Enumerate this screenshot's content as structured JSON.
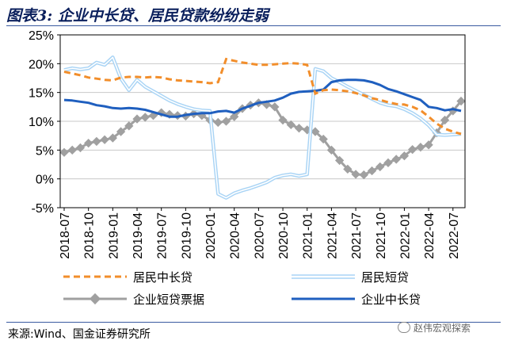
{
  "header": {
    "title": "图表3:  企业中长贷、居民贷款纷纷走弱"
  },
  "footer": {
    "source": "来源:Wind、国金证券研究所",
    "watermark": "赵伟宏观探索"
  },
  "colors": {
    "series1": "#f28e2b",
    "series2": "#a9d4f5",
    "series3": "#a0a0a0",
    "series4": "#1f5fbf"
  },
  "chart_data": {
    "type": "line",
    "x": [
      "2018-07",
      "2018-08",
      "2018-09",
      "2018-10",
      "2018-11",
      "2018-12",
      "2019-01",
      "2019-02",
      "2019-03",
      "2019-04",
      "2019-05",
      "2019-06",
      "2019-07",
      "2019-08",
      "2019-09",
      "2019-10",
      "2019-11",
      "2019-12",
      "2020-01",
      "2020-02",
      "2020-03",
      "2020-04",
      "2020-05",
      "2020-06",
      "2020-07",
      "2020-08",
      "2020-09",
      "2020-10",
      "2020-11",
      "2020-12",
      "2021-01",
      "2021-02",
      "2021-03",
      "2021-04",
      "2021-05",
      "2021-06",
      "2021-07",
      "2021-08",
      "2021-09",
      "2021-10",
      "2021-11",
      "2021-12",
      "2022-01",
      "2022-02",
      "2022-03",
      "2022-04",
      "2022-05",
      "2022-06",
      "2022-07",
      "2022-08"
    ],
    "xticks": [
      "2018-07",
      "2018-10",
      "2019-01",
      "2019-04",
      "2019-07",
      "2019-10",
      "2020-01",
      "2020-04",
      "2020-07",
      "2020-10",
      "2021-01",
      "2021-04",
      "2021-07",
      "2021-10",
      "2022-01",
      "2022-04",
      "2022-07"
    ],
    "yticks": [
      "25%",
      "20%",
      "15%",
      "10%",
      "5%",
      "0%",
      "-5%"
    ],
    "ylim": [
      -5,
      25
    ],
    "y_unit": "%",
    "series": [
      {
        "name": "居民中长贷",
        "style": "dashed",
        "values": [
          18.6,
          18.3,
          18.0,
          17.6,
          17.4,
          17.2,
          17.1,
          17.6,
          17.7,
          17.7,
          17.6,
          17.7,
          17.6,
          17.3,
          17.1,
          17.0,
          16.9,
          16.8,
          16.6,
          16.8,
          20.8,
          20.5,
          20.2,
          20.0,
          19.8,
          19.8,
          19.9,
          20.0,
          20.1,
          20.0,
          19.8,
          14.8,
          15.4,
          15.5,
          15.4,
          15.2,
          14.9,
          14.5,
          14.0,
          13.7,
          13.3,
          13.0,
          12.9,
          12.5,
          11.9,
          10.8,
          9.6,
          8.7,
          8.2,
          7.8
        ]
      },
      {
        "name": "居民短贷",
        "style": "double",
        "values": [
          18.9,
          19.2,
          19.0,
          19.2,
          20.2,
          19.8,
          21.1,
          17.4,
          15.4,
          17.2,
          16.0,
          15.2,
          14.4,
          13.6,
          13.0,
          12.5,
          12.1,
          11.9,
          11.8,
          -2.6,
          -3.3,
          -2.5,
          -2.0,
          -1.6,
          -1.1,
          -0.6,
          0.2,
          0.6,
          0.8,
          0.5,
          0.8,
          19.1,
          18.7,
          17.5,
          16.8,
          16.0,
          15.3,
          14.6,
          13.9,
          13.2,
          12.8,
          12.6,
          12.1,
          11.4,
          10.5,
          9.3,
          7.7,
          7.6,
          7.7,
          7.8
        ]
      },
      {
        "name": "企业短贷票据",
        "style": "diamond",
        "values": [
          4.6,
          5.0,
          5.4,
          6.2,
          6.5,
          6.8,
          7.1,
          8.2,
          9.2,
          10.4,
          10.7,
          11.0,
          11.5,
          11.2,
          11.0,
          10.9,
          11.3,
          11.0,
          10.2,
          9.8,
          10.0,
          10.8,
          12.2,
          12.8,
          13.2,
          12.9,
          12.5,
          10.2,
          9.4,
          8.8,
          8.5,
          8.2,
          6.9,
          5.0,
          3.2,
          1.7,
          0.8,
          0.7,
          1.4,
          2.1,
          2.8,
          3.4,
          4.0,
          5.1,
          5.5,
          5.9,
          8.0,
          10.2,
          11.8,
          13.5
        ]
      },
      {
        "name": "企业中长贷",
        "style": "solid",
        "values": [
          13.7,
          13.6,
          13.4,
          13.2,
          12.8,
          12.6,
          12.3,
          12.2,
          12.3,
          12.2,
          12.0,
          11.6,
          11.2,
          10.8,
          10.8,
          11.1,
          11.3,
          11.4,
          11.4,
          11.7,
          11.8,
          11.5,
          12.2,
          12.7,
          13.2,
          13.4,
          13.6,
          14.1,
          14.8,
          15.1,
          15.2,
          15.3,
          15.5,
          16.8,
          17.1,
          17.2,
          17.2,
          17.1,
          16.8,
          16.3,
          15.6,
          15.2,
          14.7,
          14.2,
          13.7,
          12.5,
          12.3,
          11.9,
          12.1,
          11.8
        ]
      }
    ]
  }
}
